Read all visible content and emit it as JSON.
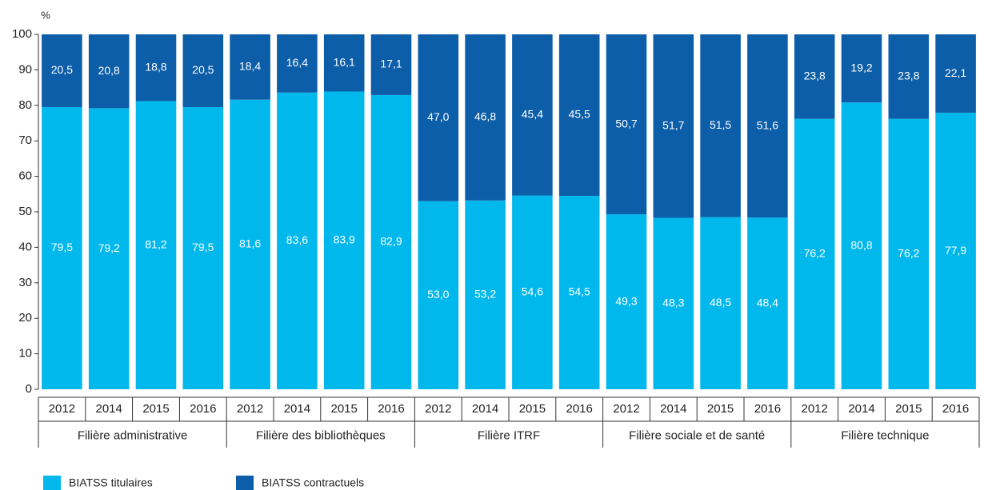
{
  "chart_data": {
    "type": "stacked-bar",
    "y_label": "%",
    "categories": [
      "2012",
      "2014",
      "2015",
      "2016",
      "2012",
      "2014",
      "2015",
      "2016",
      "2012",
      "2014",
      "2015",
      "2016",
      "2012",
      "2014",
      "2015",
      "2016",
      "2012",
      "2014",
      "2015",
      "2016"
    ],
    "groups": [
      "Filière administrative",
      "Filière des bibliothèques",
      "Filière ITRF",
      "Filière sociale et de santé",
      "Filière technique"
    ],
    "series": [
      {
        "name": "BIATSS titulaires",
        "color": "#00b8ec",
        "values": [
          79.5,
          79.2,
          81.2,
          79.5,
          81.6,
          83.6,
          83.9,
          82.9,
          53.0,
          53.2,
          54.6,
          54.5,
          49.3,
          48.3,
          48.5,
          48.4,
          76.2,
          80.8,
          76.2,
          77.9
        ],
        "value_labels": [
          "79,5",
          "79,2",
          "81,2",
          "79,5",
          "81,6",
          "83,6",
          "83,9",
          "82,9",
          "53,0",
          "53,2",
          "54,6",
          "54,5",
          "49,3",
          "48,3",
          "48,5",
          "48,4",
          "76,2",
          "80,8",
          "76,2",
          "77,9"
        ]
      },
      {
        "name": "BIATSS contractuels",
        "color": "#0d5ea8",
        "values": [
          20.5,
          20.8,
          18.8,
          20.5,
          18.4,
          16.4,
          16.1,
          17.1,
          47.0,
          46.8,
          45.4,
          45.5,
          50.7,
          51.7,
          51.5,
          51.6,
          23.8,
          19.2,
          23.8,
          22.1
        ],
        "value_labels": [
          "20,5",
          "20,8",
          "18,8",
          "20,5",
          "18,4",
          "16,4",
          "16,1",
          "17,1",
          "47,0",
          "46,8",
          "45,4",
          "45,5",
          "50,7",
          "51,7",
          "51,5",
          "51,6",
          "23,8",
          "19,2",
          "23,8",
          "22,1"
        ]
      }
    ],
    "ylim": [
      0,
      100
    ],
    "yticks": [
      0,
      10,
      20,
      30,
      40,
      50,
      60,
      70,
      80,
      90,
      100
    ],
    "grid": false,
    "legend": "bottom-left"
  }
}
